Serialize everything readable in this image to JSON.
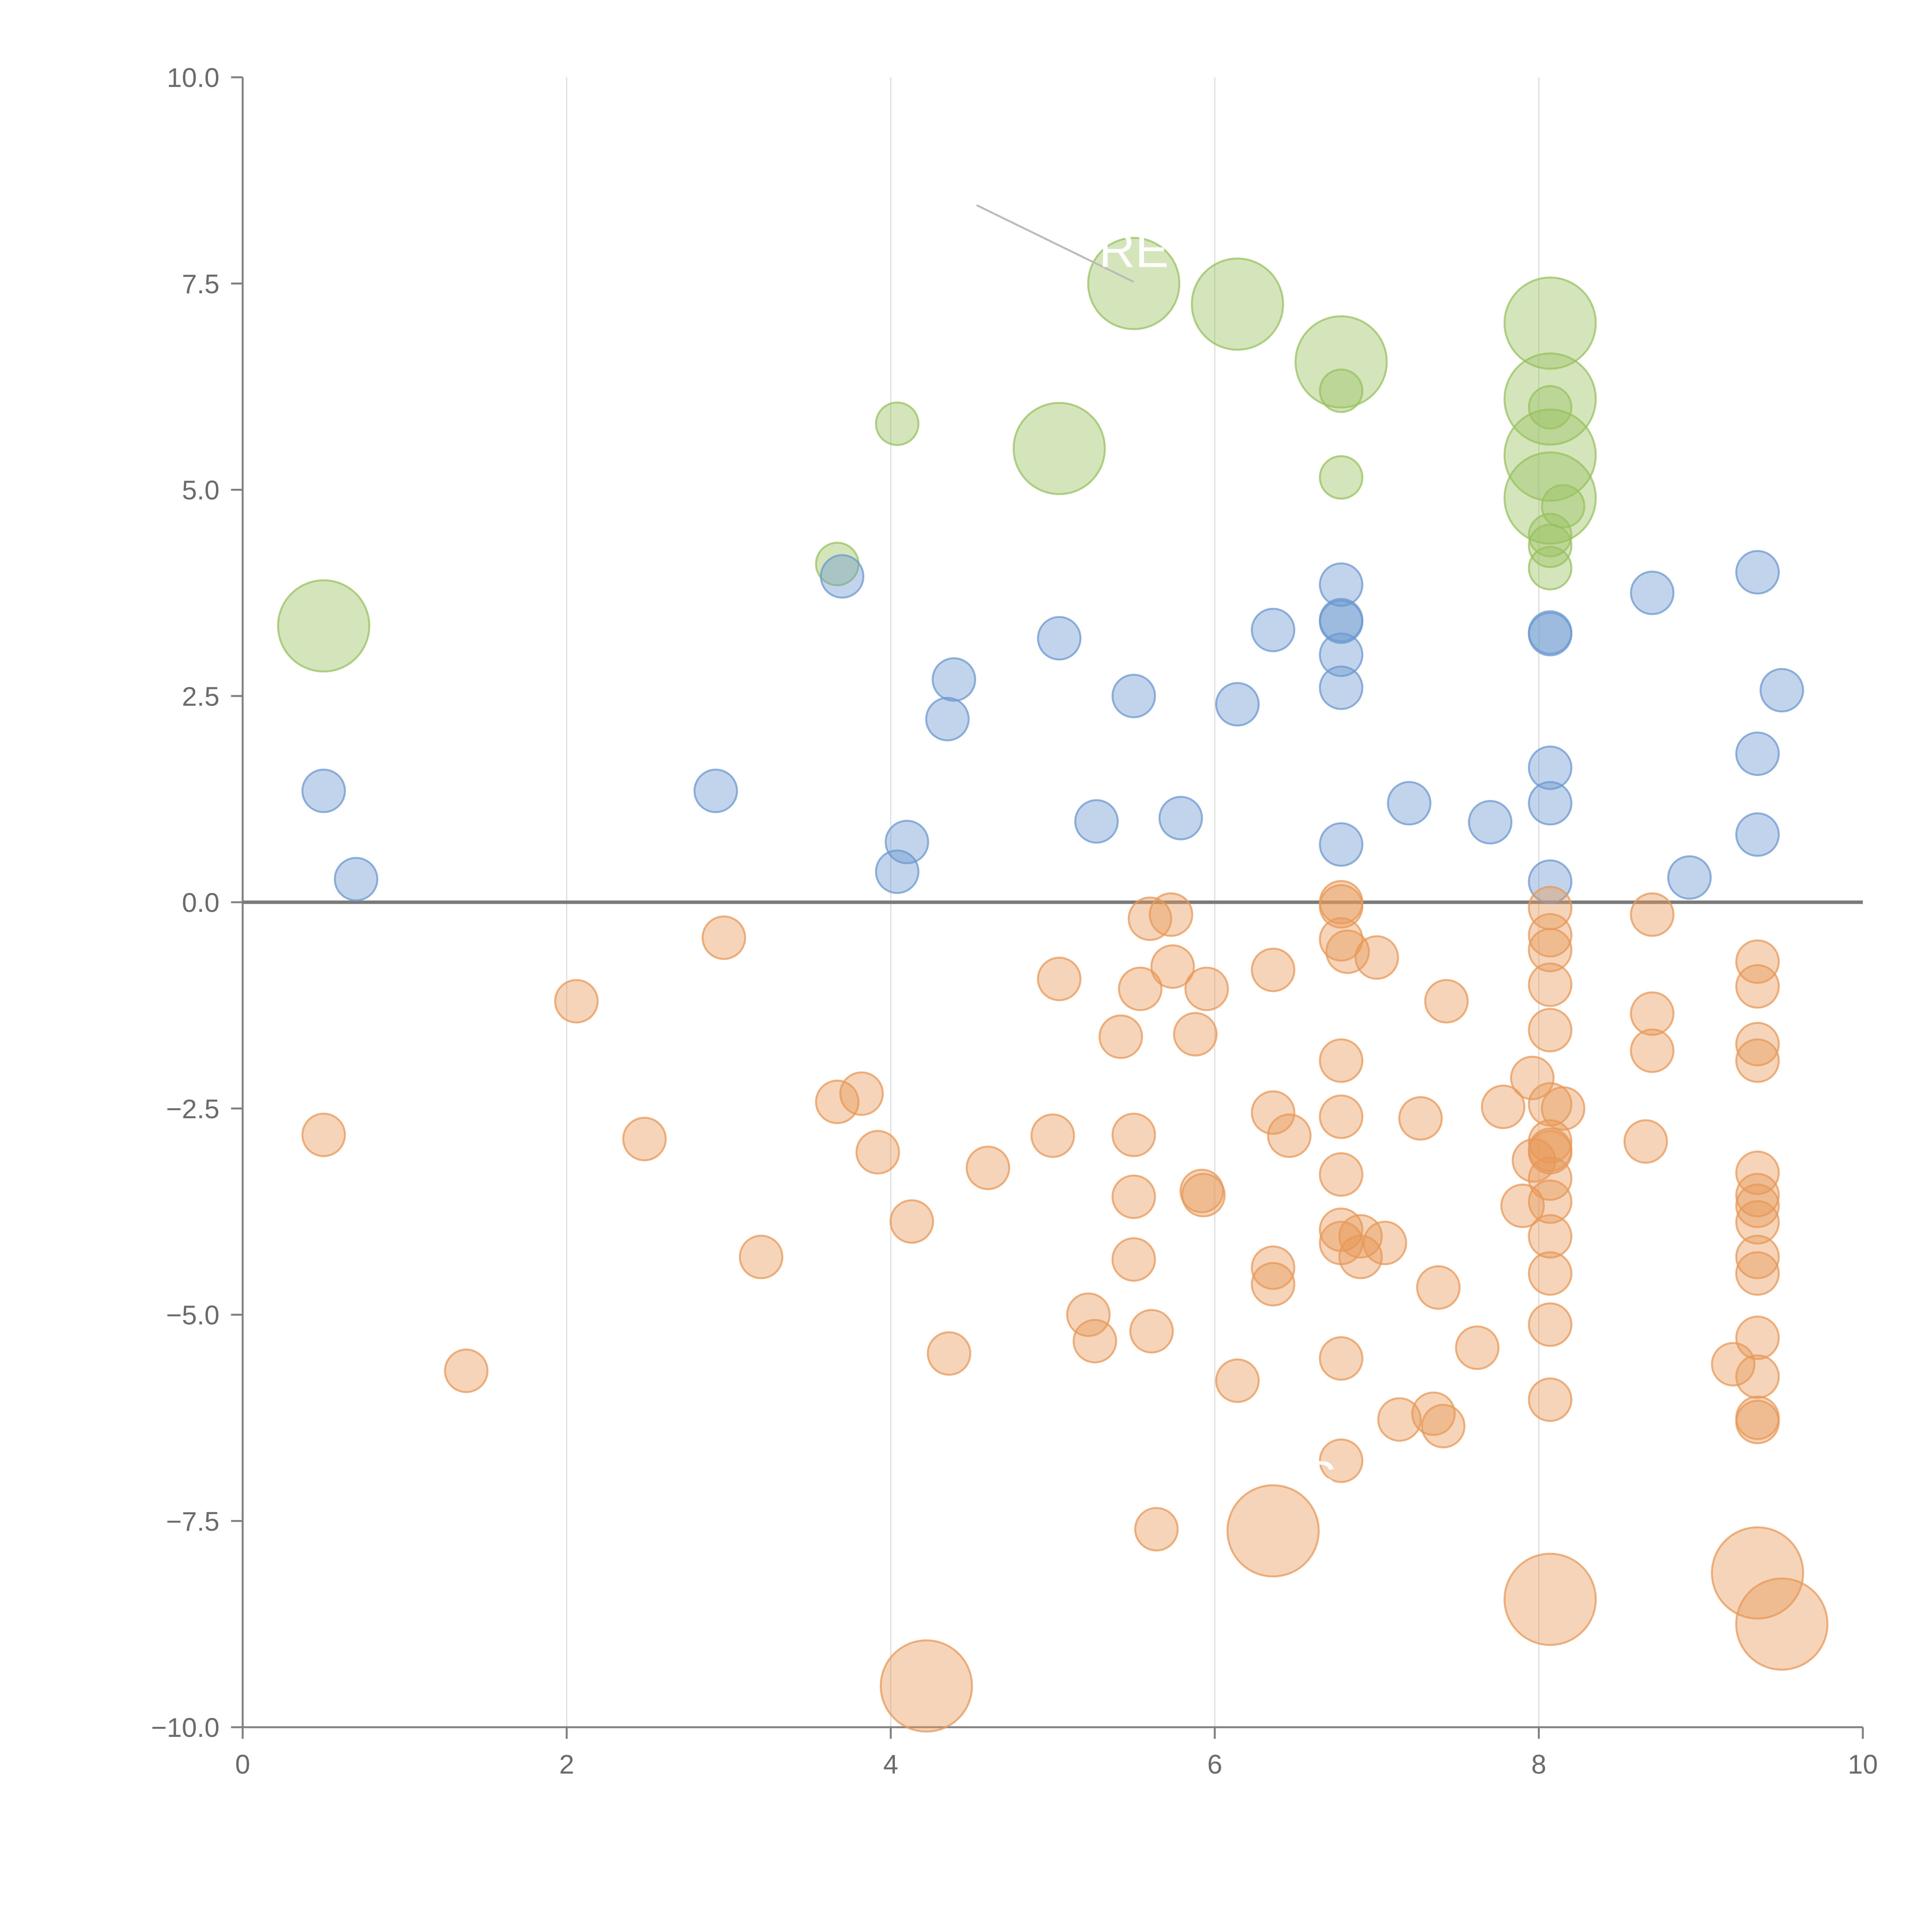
{
  "chart_data": {
    "type": "scatter",
    "title": "",
    "xlabel": "",
    "ylabel": "",
    "xlim": [
      0,
      10
    ],
    "ylim": [
      -10,
      10
    ],
    "x_ticks": [
      0,
      2,
      4,
      6,
      8,
      10
    ],
    "y_ticks": [
      -10.0,
      -7.5,
      -5.0,
      -2.5,
      0.0,
      2.5,
      5.0,
      7.5,
      10.0
    ],
    "x_tick_labels": [
      "0",
      "2",
      "4",
      "6",
      "8",
      "10"
    ],
    "y_tick_labels": [
      "−10.0",
      "−7.5",
      "−5.0",
      "−2.5",
      "0.0",
      "2.5",
      "5.0",
      "7.5",
      "10.0"
    ],
    "grid": "vertical",
    "reference_line_y": 0,
    "colors": {
      "green": "#98c060",
      "blue": "#6c98d0",
      "orange": "#e89858",
      "axis": "#808080",
      "grid": "#dddddd",
      "zero_line": "#7a7a7a",
      "annotation_line": "#bbbbbb"
    },
    "series": [
      {
        "name": "green",
        "color_key": "green",
        "points": [
          [
            0.5,
            3.35,
            3
          ],
          [
            3.67,
            4.1,
            1
          ],
          [
            4.04,
            5.8,
            1
          ],
          [
            5.04,
            5.5,
            3
          ],
          [
            5.5,
            7.5,
            3
          ],
          [
            6.14,
            7.25,
            3
          ],
          [
            6.78,
            6.55,
            3
          ],
          [
            6.78,
            6.2,
            1
          ],
          [
            6.78,
            5.15,
            1
          ],
          [
            8.07,
            7.02,
            3
          ],
          [
            8.07,
            6.1,
            3
          ],
          [
            8.07,
            5.42,
            3
          ],
          [
            8.07,
            4.9,
            3
          ],
          [
            8.07,
            6.0,
            1
          ],
          [
            8.07,
            4.45,
            1
          ],
          [
            8.07,
            4.32,
            1
          ],
          [
            8.07,
            4.05,
            1
          ],
          [
            8.15,
            4.8,
            1
          ]
        ]
      },
      {
        "name": "blue",
        "color_key": "blue",
        "points": [
          [
            0.5,
            1.35,
            1
          ],
          [
            0.7,
            0.28,
            1
          ],
          [
            2.92,
            1.35,
            1
          ],
          [
            3.7,
            3.95,
            1
          ],
          [
            4.04,
            0.37,
            1
          ],
          [
            4.1,
            0.73,
            1
          ],
          [
            4.35,
            2.22,
            1
          ],
          [
            4.39,
            2.7,
            1
          ],
          [
            5.04,
            3.2,
            1
          ],
          [
            5.27,
            0.98,
            1
          ],
          [
            5.5,
            2.5,
            1
          ],
          [
            5.79,
            1.02,
            1
          ],
          [
            6.14,
            2.4,
            1
          ],
          [
            6.36,
            3.3,
            1
          ],
          [
            6.78,
            3.85,
            1
          ],
          [
            6.78,
            3.4,
            1
          ],
          [
            6.78,
            3.42,
            1
          ],
          [
            6.78,
            3.0,
            1
          ],
          [
            6.78,
            2.6,
            1
          ],
          [
            6.78,
            0.7,
            1
          ],
          [
            7.2,
            1.2,
            1
          ],
          [
            7.7,
            0.97,
            1
          ],
          [
            8.07,
            3.25,
            1
          ],
          [
            8.07,
            3.27,
            1
          ],
          [
            8.07,
            1.63,
            1
          ],
          [
            8.07,
            1.2,
            1
          ],
          [
            8.07,
            0.25,
            1
          ],
          [
            8.7,
            3.75,
            1
          ],
          [
            8.93,
            0.3,
            1
          ],
          [
            9.35,
            4.0,
            1
          ],
          [
            9.35,
            1.8,
            1
          ],
          [
            9.35,
            0.82,
            1
          ],
          [
            9.5,
            2.57,
            1
          ]
        ]
      },
      {
        "name": "orange",
        "color_key": "orange",
        "points": [
          [
            0.5,
            -2.82,
            1
          ],
          [
            1.38,
            -5.68,
            1
          ],
          [
            2.06,
            -1.2,
            1
          ],
          [
            2.48,
            -2.87,
            1
          ],
          [
            2.97,
            -0.43,
            1
          ],
          [
            3.2,
            -4.3,
            1
          ],
          [
            3.67,
            -2.42,
            1
          ],
          [
            3.82,
            -2.32,
            1
          ],
          [
            3.92,
            -3.03,
            1
          ],
          [
            4.13,
            -3.87,
            1
          ],
          [
            4.22,
            -9.5,
            3
          ],
          [
            4.36,
            -5.47,
            1
          ],
          [
            4.6,
            -3.22,
            1
          ],
          [
            5.0,
            -2.83,
            1
          ],
          [
            5.04,
            -0.93,
            1
          ],
          [
            5.22,
            -5.0,
            1
          ],
          [
            5.26,
            -5.32,
            1
          ],
          [
            5.42,
            -1.63,
            1
          ],
          [
            5.5,
            -2.82,
            1
          ],
          [
            5.5,
            -3.57,
            1
          ],
          [
            5.5,
            -4.33,
            1
          ],
          [
            5.54,
            -1.05,
            1
          ],
          [
            5.6,
            -0.2,
            1
          ],
          [
            5.61,
            -5.2,
            1
          ],
          [
            5.64,
            -7.6,
            1
          ],
          [
            5.73,
            -0.15,
            1
          ],
          [
            5.74,
            -0.78,
            1
          ],
          [
            5.88,
            -1.6,
            1
          ],
          [
            5.92,
            -3.5,
            1
          ],
          [
            5.93,
            -3.55,
            1
          ],
          [
            5.95,
            -1.05,
            1
          ],
          [
            6.14,
            -5.8,
            1
          ],
          [
            6.36,
            -2.55,
            1
          ],
          [
            6.36,
            -4.43,
            1
          ],
          [
            6.36,
            -4.63,
            1
          ],
          [
            6.36,
            -0.82,
            1
          ],
          [
            6.36,
            -7.62,
            3
          ],
          [
            6.46,
            -2.83,
            1
          ],
          [
            6.78,
            0.0,
            1
          ],
          [
            6.78,
            -0.05,
            1
          ],
          [
            6.78,
            -0.45,
            1
          ],
          [
            6.78,
            -1.92,
            1
          ],
          [
            6.78,
            -2.6,
            1
          ],
          [
            6.78,
            -3.3,
            1
          ],
          [
            6.78,
            -3.97,
            1
          ],
          [
            6.78,
            -4.13,
            1
          ],
          [
            6.78,
            -5.53,
            1
          ],
          [
            6.78,
            -6.77,
            1
          ],
          [
            6.82,
            -0.6,
            1
          ],
          [
            6.9,
            -4.05,
            1
          ],
          [
            6.9,
            -4.3,
            1
          ],
          [
            7.0,
            -0.67,
            1
          ],
          [
            7.05,
            -4.13,
            1
          ],
          [
            7.14,
            -6.27,
            1
          ],
          [
            7.27,
            -2.62,
            1
          ],
          [
            7.35,
            -6.2,
            1
          ],
          [
            7.38,
            -4.67,
            1
          ],
          [
            7.41,
            -6.35,
            1
          ],
          [
            7.43,
            -1.2,
            1
          ],
          [
            7.62,
            -5.4,
            1
          ],
          [
            7.78,
            -2.48,
            1
          ],
          [
            7.9,
            -3.68,
            1
          ],
          [
            7.96,
            -2.13,
            1
          ],
          [
            7.97,
            -3.13,
            1
          ],
          [
            8.07,
            -0.07,
            1
          ],
          [
            8.07,
            -0.4,
            1
          ],
          [
            8.07,
            -0.58,
            1
          ],
          [
            8.07,
            -1.0,
            1
          ],
          [
            8.07,
            -1.55,
            1
          ],
          [
            8.07,
            -2.45,
            1
          ],
          [
            8.07,
            -2.9,
            1
          ],
          [
            8.07,
            -3.0,
            1
          ],
          [
            8.07,
            -3.03,
            1
          ],
          [
            8.07,
            -3.35,
            1
          ],
          [
            8.07,
            -3.63,
            1
          ],
          [
            8.07,
            -4.05,
            1
          ],
          [
            8.07,
            -4.5,
            1
          ],
          [
            8.07,
            -5.12,
            1
          ],
          [
            8.07,
            -6.03,
            1
          ],
          [
            8.07,
            -8.45,
            3
          ],
          [
            8.15,
            -2.5,
            1
          ],
          [
            8.66,
            -2.9,
            1
          ],
          [
            8.7,
            -0.15,
            1
          ],
          [
            8.7,
            -1.35,
            1
          ],
          [
            8.7,
            -1.8,
            1
          ],
          [
            9.2,
            -5.6,
            1
          ],
          [
            9.35,
            -0.72,
            1
          ],
          [
            9.35,
            -1.02,
            1
          ],
          [
            9.35,
            -1.72,
            1
          ],
          [
            9.35,
            -1.92,
            1
          ],
          [
            9.35,
            -3.28,
            1
          ],
          [
            9.35,
            -3.55,
            1
          ],
          [
            9.35,
            -3.68,
            1
          ],
          [
            9.35,
            -3.88,
            1
          ],
          [
            9.35,
            -4.3,
            1
          ],
          [
            9.35,
            -4.5,
            1
          ],
          [
            9.35,
            -5.28,
            1
          ],
          [
            9.35,
            -5.75,
            1
          ],
          [
            9.35,
            -6.25,
            1
          ],
          [
            9.35,
            -6.3,
            1
          ],
          [
            9.35,
            -8.13,
            3
          ],
          [
            9.5,
            -8.75,
            3
          ]
        ]
      }
    ],
    "annotations": [
      {
        "label": "RE",
        "x": 5.5,
        "y": 7.5,
        "text_x": 5.5,
        "text_y": 7.7,
        "line_from": [
          4.53,
          8.45
        ],
        "line_to": [
          5.5,
          7.52
        ]
      },
      {
        "label": "S",
        "x": 6.78,
        "y": -6.77,
        "text_x": 6.65,
        "text_y": -7.2,
        "line_from": null,
        "line_to": null
      }
    ]
  }
}
